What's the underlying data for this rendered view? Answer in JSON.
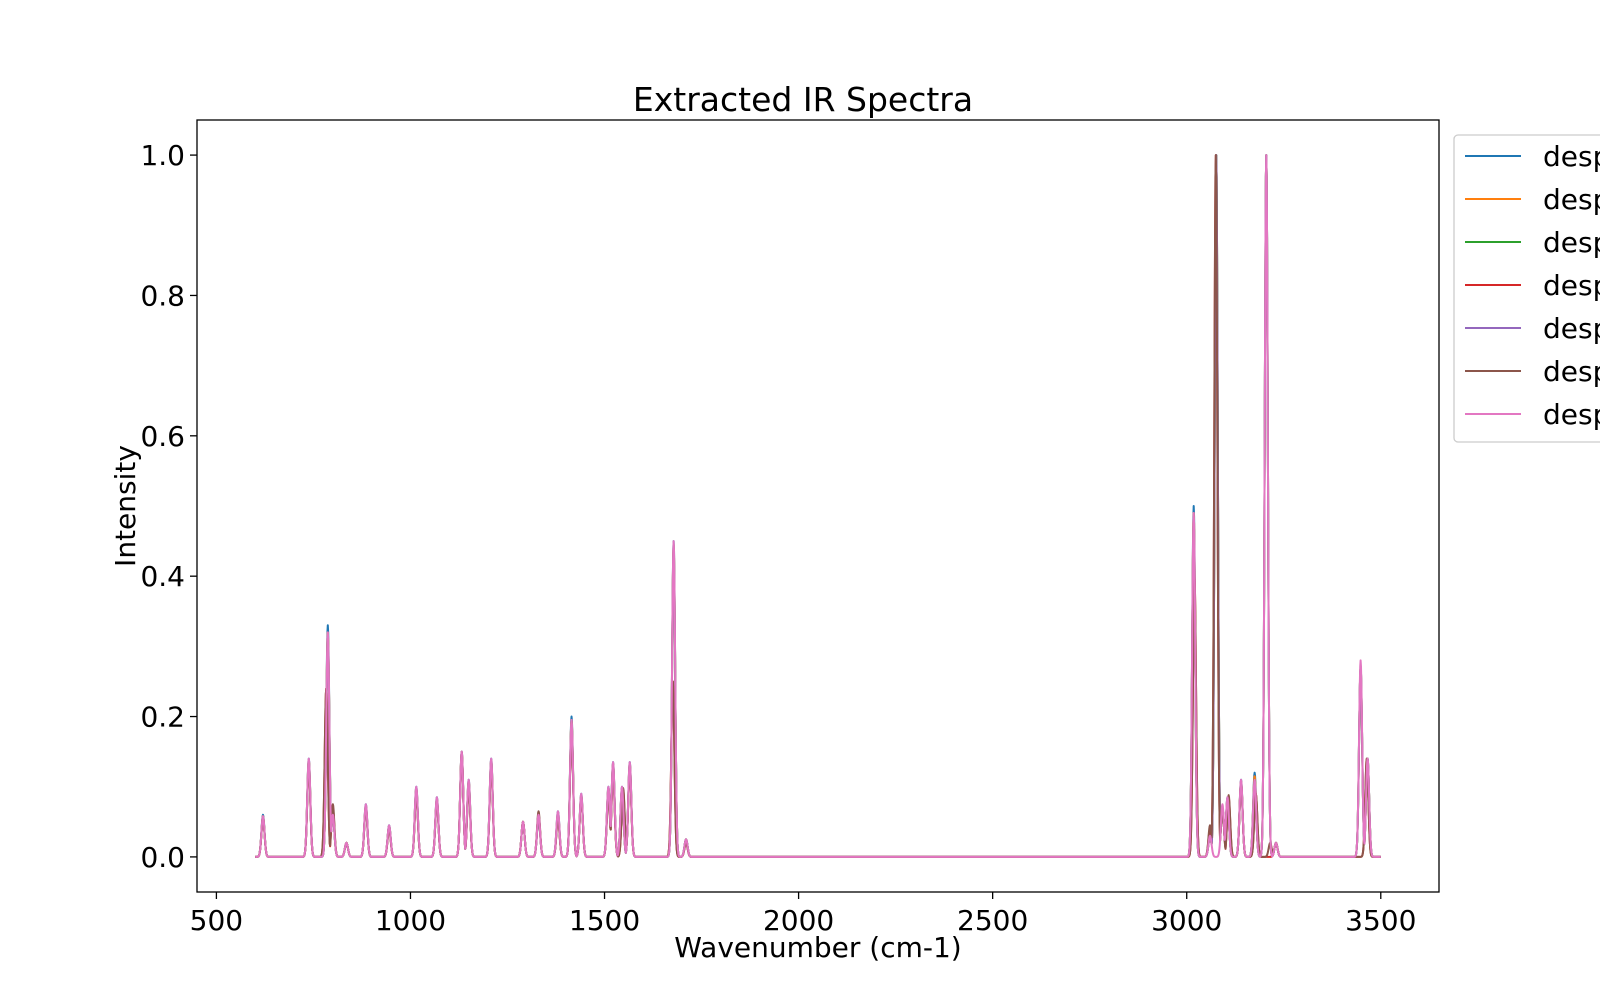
{
  "chart_data": {
    "type": "line",
    "title": "Extracted IR Spectra",
    "xlabel": "Wavenumber (cm-1)",
    "ylabel": "Intensity",
    "xlim": [
      450,
      3650
    ],
    "ylim": [
      -0.05,
      1.05
    ],
    "xticks": [
      500,
      1000,
      1500,
      2000,
      2500,
      3000,
      3500
    ],
    "yticks": [
      0.0,
      0.2,
      0.4,
      0.6,
      0.8,
      1.0
    ],
    "xtick_labels": [
      "500",
      "1000",
      "1500",
      "2000",
      "2500",
      "3000",
      "3500"
    ],
    "ytick_labels": [
      "0.0",
      "0.2",
      "0.4",
      "0.6",
      "0.8",
      "1.0"
    ],
    "grid": false,
    "legend_position": "outside-upper-right",
    "line_width": 2,
    "x_range": [
      600,
      3500
    ],
    "series": [
      {
        "name": "desp",
        "color": "#1f77b4",
        "peaks": [
          [
            620,
            0.06
          ],
          [
            738,
            0.14
          ],
          [
            787,
            0.33
          ],
          [
            800,
            0.06
          ],
          [
            835,
            0.02
          ],
          [
            885,
            0.075
          ],
          [
            945,
            0.045
          ],
          [
            1015,
            0.1
          ],
          [
            1068,
            0.085
          ],
          [
            1132,
            0.15
          ],
          [
            1150,
            0.11
          ],
          [
            1208,
            0.14
          ],
          [
            1290,
            0.05
          ],
          [
            1330,
            0.06
          ],
          [
            1380,
            0.065
          ],
          [
            1415,
            0.2
          ],
          [
            1440,
            0.09
          ],
          [
            1510,
            0.1
          ],
          [
            1522,
            0.135
          ],
          [
            1545,
            0.1
          ],
          [
            1565,
            0.135
          ],
          [
            1678,
            0.45
          ],
          [
            1710,
            0.025
          ],
          [
            3018,
            0.5
          ],
          [
            3060,
            0.03
          ],
          [
            3076,
            1.0
          ],
          [
            3092,
            0.07
          ],
          [
            3105,
            0.085
          ],
          [
            3140,
            0.11
          ],
          [
            3175,
            0.12
          ],
          [
            3205,
            1.0
          ],
          [
            3230,
            0.02
          ],
          [
            3448,
            0.27
          ],
          [
            3466,
            0.14
          ]
        ]
      },
      {
        "name": "desp",
        "color": "#ff7f0e",
        "peaks": [
          [
            620,
            0.058
          ],
          [
            738,
            0.138
          ],
          [
            787,
            0.32
          ],
          [
            800,
            0.06
          ],
          [
            835,
            0.02
          ],
          [
            885,
            0.073
          ],
          [
            945,
            0.044
          ],
          [
            1015,
            0.098
          ],
          [
            1068,
            0.083
          ],
          [
            1132,
            0.148
          ],
          [
            1150,
            0.108
          ],
          [
            1208,
            0.138
          ],
          [
            1290,
            0.05
          ],
          [
            1330,
            0.058
          ],
          [
            1380,
            0.062
          ],
          [
            1415,
            0.195
          ],
          [
            1440,
            0.088
          ],
          [
            1510,
            0.098
          ],
          [
            1522,
            0.133
          ],
          [
            1545,
            0.098
          ],
          [
            1565,
            0.133
          ],
          [
            1678,
            0.445
          ],
          [
            1710,
            0.025
          ],
          [
            3018,
            0.49
          ],
          [
            3060,
            0.03
          ],
          [
            3076,
            1.0
          ],
          [
            3092,
            0.07
          ],
          [
            3105,
            0.083
          ],
          [
            3140,
            0.108
          ],
          [
            3175,
            0.115
          ],
          [
            3205,
            1.0
          ],
          [
            3230,
            0.02
          ],
          [
            3448,
            0.27
          ],
          [
            3466,
            0.14
          ]
        ]
      },
      {
        "name": "desp",
        "color": "#2ca02c",
        "peaks": [
          [
            620,
            0.057
          ],
          [
            738,
            0.137
          ],
          [
            787,
            0.315
          ],
          [
            800,
            0.06
          ],
          [
            835,
            0.02
          ],
          [
            885,
            0.072
          ],
          [
            945,
            0.044
          ],
          [
            1015,
            0.097
          ],
          [
            1068,
            0.082
          ],
          [
            1132,
            0.147
          ],
          [
            1150,
            0.107
          ],
          [
            1208,
            0.137
          ],
          [
            1290,
            0.05
          ],
          [
            1330,
            0.057
          ],
          [
            1380,
            0.06
          ],
          [
            1415,
            0.193
          ],
          [
            1440,
            0.087
          ],
          [
            1510,
            0.097
          ],
          [
            1522,
            0.132
          ],
          [
            1545,
            0.097
          ],
          [
            1565,
            0.132
          ],
          [
            1678,
            0.44
          ],
          [
            1710,
            0.025
          ],
          [
            3018,
            0.48
          ],
          [
            3060,
            0.03
          ],
          [
            3076,
            1.0
          ],
          [
            3092,
            0.07
          ],
          [
            3105,
            0.082
          ],
          [
            3140,
            0.107
          ],
          [
            3175,
            0.11
          ],
          [
            3205,
            1.0
          ],
          [
            3230,
            0.02
          ],
          [
            3448,
            0.27
          ],
          [
            3466,
            0.14
          ]
        ]
      },
      {
        "name": "desp",
        "color": "#d62728",
        "peaks": [
          [
            620,
            0.055
          ],
          [
            738,
            0.13
          ],
          [
            783,
            0.24
          ],
          [
            800,
            0.07
          ],
          [
            835,
            0.02
          ],
          [
            885,
            0.07
          ],
          [
            945,
            0.04
          ],
          [
            1015,
            0.09
          ],
          [
            1068,
            0.08
          ],
          [
            1132,
            0.145
          ],
          [
            1150,
            0.1
          ],
          [
            1208,
            0.13
          ],
          [
            1290,
            0.05
          ],
          [
            1330,
            0.06
          ],
          [
            1380,
            0.055
          ],
          [
            1415,
            0.185
          ],
          [
            1440,
            0.085
          ],
          [
            1510,
            0.09
          ],
          [
            1522,
            0.12
          ],
          [
            1548,
            0.095
          ],
          [
            1565,
            0.125
          ],
          [
            1676,
            0.25
          ],
          [
            1710,
            0.02
          ],
          [
            3020,
            0.4
          ],
          [
            3060,
            0.04
          ],
          [
            3075,
            1.0
          ],
          [
            3092,
            0.07
          ],
          [
            3108,
            0.085
          ],
          [
            3140,
            0.105
          ],
          [
            3178,
            0.09
          ],
          [
            3205,
            0.0
          ],
          [
            3230,
            0.02
          ],
          [
            3448,
            0.0
          ],
          [
            3464,
            0.14
          ]
        ]
      },
      {
        "name": "desp",
        "color": "#9467bd",
        "peaks": [
          [
            620,
            0.056
          ],
          [
            738,
            0.135
          ],
          [
            787,
            0.31
          ],
          [
            800,
            0.06
          ],
          [
            835,
            0.02
          ],
          [
            885,
            0.071
          ],
          [
            945,
            0.043
          ],
          [
            1015,
            0.096
          ],
          [
            1068,
            0.081
          ],
          [
            1132,
            0.146
          ],
          [
            1150,
            0.106
          ],
          [
            1208,
            0.136
          ],
          [
            1290,
            0.05
          ],
          [
            1330,
            0.056
          ],
          [
            1380,
            0.06
          ],
          [
            1415,
            0.19
          ],
          [
            1440,
            0.086
          ],
          [
            1510,
            0.096
          ],
          [
            1522,
            0.131
          ],
          [
            1545,
            0.096
          ],
          [
            1565,
            0.131
          ],
          [
            1678,
            0.44
          ],
          [
            1710,
            0.025
          ],
          [
            3018,
            0.48
          ],
          [
            3060,
            0.03
          ],
          [
            3076,
            1.0
          ],
          [
            3092,
            0.07
          ],
          [
            3105,
            0.081
          ],
          [
            3140,
            0.106
          ],
          [
            3175,
            0.105
          ],
          [
            3205,
            1.0
          ],
          [
            3230,
            0.02
          ],
          [
            3448,
            0.27
          ],
          [
            3466,
            0.14
          ]
        ]
      },
      {
        "name": "desp",
        "color": "#8c564b",
        "peaks": [
          [
            620,
            0.055
          ],
          [
            738,
            0.13
          ],
          [
            783,
            0.24
          ],
          [
            800,
            0.075
          ],
          [
            835,
            0.02
          ],
          [
            885,
            0.07
          ],
          [
            945,
            0.04
          ],
          [
            1015,
            0.09
          ],
          [
            1068,
            0.08
          ],
          [
            1132,
            0.15
          ],
          [
            1150,
            0.1
          ],
          [
            1208,
            0.13
          ],
          [
            1290,
            0.05
          ],
          [
            1330,
            0.065
          ],
          [
            1380,
            0.055
          ],
          [
            1415,
            0.185
          ],
          [
            1440,
            0.085
          ],
          [
            1510,
            0.09
          ],
          [
            1522,
            0.12
          ],
          [
            1548,
            0.098
          ],
          [
            1565,
            0.125
          ],
          [
            1676,
            0.25
          ],
          [
            1710,
            0.02
          ],
          [
            3020,
            0.4
          ],
          [
            3060,
            0.045
          ],
          [
            3075,
            1.0
          ],
          [
            3092,
            0.07
          ],
          [
            3108,
            0.088
          ],
          [
            3140,
            0.105
          ],
          [
            3178,
            0.09
          ],
          [
            3215,
            0.02
          ],
          [
            3230,
            0.02
          ],
          [
            3448,
            0.0
          ],
          [
            3464,
            0.14
          ]
        ]
      },
      {
        "name": "desp",
        "color": "#e377c2",
        "peaks": [
          [
            620,
            0.058
          ],
          [
            738,
            0.14
          ],
          [
            787,
            0.32
          ],
          [
            800,
            0.06
          ],
          [
            835,
            0.02
          ],
          [
            885,
            0.075
          ],
          [
            945,
            0.045
          ],
          [
            1015,
            0.1
          ],
          [
            1068,
            0.085
          ],
          [
            1132,
            0.15
          ],
          [
            1150,
            0.11
          ],
          [
            1208,
            0.14
          ],
          [
            1290,
            0.05
          ],
          [
            1330,
            0.06
          ],
          [
            1380,
            0.065
          ],
          [
            1415,
            0.195
          ],
          [
            1440,
            0.09
          ],
          [
            1510,
            0.1
          ],
          [
            1522,
            0.135
          ],
          [
            1545,
            0.1
          ],
          [
            1565,
            0.135
          ],
          [
            1678,
            0.45
          ],
          [
            1710,
            0.025
          ],
          [
            3018,
            0.49
          ],
          [
            3060,
            0.03
          ],
          [
            3078,
            0.0
          ],
          [
            3092,
            0.075
          ],
          [
            3105,
            0.085
          ],
          [
            3140,
            0.11
          ],
          [
            3175,
            0.11
          ],
          [
            3205,
            1.0
          ],
          [
            3230,
            0.02
          ],
          [
            3448,
            0.28
          ],
          [
            3466,
            0.14
          ]
        ]
      }
    ]
  }
}
